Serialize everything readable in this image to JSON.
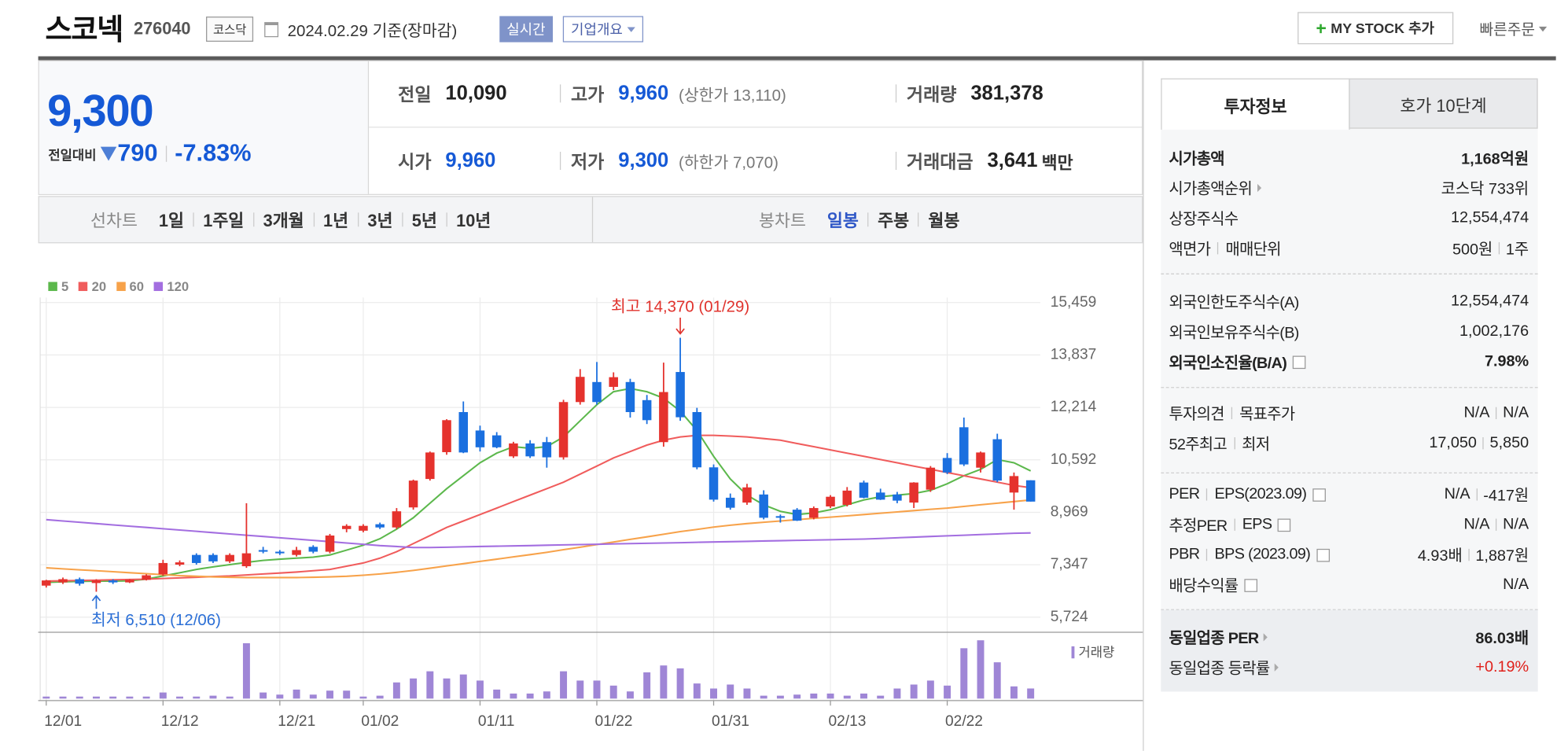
{
  "header": {
    "name": "스코넥",
    "code": "276040",
    "market": "코스닥",
    "date": "2024.02.29 기준(장마감)",
    "realtime": "실시간",
    "company": "기업개요",
    "my_stock": "MY STOCK 추가",
    "quick_order": "빠른주문"
  },
  "quote": {
    "price": "9,300",
    "change_label": "전일대비",
    "change": "790",
    "change_rate": "-7.83%",
    "fields": [
      {
        "label": "전일",
        "value": "10,090"
      },
      {
        "label": "고가",
        "value": "9,960",
        "color": "#1559d6",
        "sub": "(상한가 13,110)"
      },
      {
        "label": "거래량",
        "value": "381,378"
      },
      {
        "label": "시가",
        "value": "9,960",
        "color": "#1559d6"
      },
      {
        "label": "저가",
        "value": "9,300",
        "color": "#1559d6",
        "sub": "(하한가 7,070)"
      },
      {
        "label": "거래대금",
        "value": "3,641",
        "unit": "백만"
      }
    ]
  },
  "tabs": {
    "line_chart": "선차트",
    "line_periods": [
      "1일",
      "1주일",
      "3개월",
      "1년",
      "3년",
      "5년",
      "10년"
    ],
    "candle_chart": "봉차트",
    "candle_periods": [
      "일봉",
      "주봉",
      "월봉"
    ]
  },
  "chart_data": {
    "type": "candlestick",
    "categories": [
      "12/01",
      null,
      null,
      null,
      null,
      null,
      null,
      "12/12",
      null,
      null,
      null,
      null,
      null,
      null,
      "12/21",
      null,
      null,
      null,
      null,
      "01/02",
      null,
      null,
      null,
      null,
      null,
      null,
      "01/11",
      null,
      null,
      null,
      null,
      null,
      null,
      "01/22",
      null,
      null,
      null,
      null,
      null,
      null,
      "01/31",
      null,
      null,
      null,
      null,
      null,
      null,
      "02/13",
      null,
      null,
      null,
      null,
      null,
      null,
      "02/22",
      null,
      null,
      null,
      null,
      null
    ],
    "open": [
      6700,
      6800,
      6900,
      6780,
      6860,
      6800,
      6880,
      7050,
      7350,
      7650,
      7650,
      7450,
      7300,
      7800,
      7750,
      7650,
      7900,
      7750,
      8450,
      8400,
      8600,
      8500,
      9120,
      10000,
      10830,
      12070,
      11500,
      11350,
      10700,
      11100,
      11140,
      10670,
      12380,
      13000,
      12850,
      13000,
      12440,
      11140,
      13310,
      12070,
      10360,
      9420,
      9270,
      9520,
      8850,
      9050,
      8800,
      9150,
      9200,
      9890,
      9580,
      9520,
      9270,
      9670,
      10650,
      11600,
      10350,
      11230,
      9580,
      9960
    ],
    "high": [
      6880,
      6950,
      6950,
      6900,
      6900,
      6900,
      7050,
      7500,
      7480,
      7700,
      7700,
      7700,
      9250,
      7900,
      7800,
      7900,
      7950,
      8300,
      8600,
      8600,
      8650,
      9100,
      9980,
      10850,
      11850,
      12400,
      11650,
      11450,
      11150,
      11200,
      11300,
      12450,
      13400,
      13620,
      13300,
      13100,
      12600,
      13600,
      14370,
      12200,
      10450,
      9550,
      9850,
      9650,
      8900,
      9100,
      9150,
      9500,
      9750,
      9950,
      9700,
      9600,
      9900,
      10400,
      10800,
      11900,
      10850,
      11400,
      10200,
      9960
    ],
    "low": [
      6640,
      6750,
      6700,
      6510,
      6750,
      6780,
      6860,
      7000,
      7300,
      7350,
      7400,
      7400,
      7250,
      7700,
      7650,
      7600,
      7700,
      7700,
      8350,
      8350,
      8450,
      8450,
      9050,
      9950,
      10750,
      10800,
      10850,
      10950,
      10650,
      10650,
      10350,
      10600,
      12300,
      12300,
      12750,
      11900,
      11700,
      11000,
      11800,
      10300,
      9300,
      9050,
      9200,
      8750,
      8650,
      8700,
      8750,
      9100,
      9150,
      9400,
      9350,
      9250,
      9100,
      9600,
      10150,
      10400,
      10200,
      9900,
      9050,
      9300
    ],
    "close": [
      6860,
      6900,
      6760,
      6860,
      6800,
      6880,
      7020,
      7400,
      7420,
      7400,
      7450,
      7650,
      7700,
      7750,
      7700,
      7800,
      7750,
      8250,
      8550,
      8550,
      8500,
      9000,
      9950,
      10820,
      11820,
      10820,
      10980,
      10980,
      11100,
      10700,
      10670,
      12380,
      13160,
      12380,
      13150,
      12070,
      11820,
      12690,
      11910,
      10360,
      9360,
      9110,
      9740,
      8800,
      8800,
      8710,
      9100,
      9450,
      9640,
      9420,
      9360,
      9330,
      9890,
      10350,
      10200,
      10450,
      10820,
      9950,
      10090,
      9300
    ],
    "up_color": "#e5322d",
    "down_color": "#1a6fdf",
    "moving_averages": [
      {
        "name": "5",
        "color": "#5cb84c",
        "values": [
          6800,
          6820,
          6830,
          6840,
          6840,
          6850,
          6900,
          7000,
          7100,
          7200,
          7280,
          7350,
          7420,
          7480,
          7520,
          7550,
          7580,
          7650,
          7800,
          7950,
          8150,
          8450,
          8800,
          9250,
          9700,
          10100,
          10500,
          10800,
          11000,
          10950,
          11000,
          11300,
          11800,
          12300,
          12700,
          12800,
          12700,
          12500,
          12100,
          11500,
          10700,
          10000,
          9500,
          9200,
          9000,
          8900,
          8950,
          9050,
          9200,
          9350,
          9450,
          9500,
          9550,
          9650,
          9850,
          10100,
          10300,
          10600,
          10500,
          10250
        ]
      },
      {
        "name": "20",
        "color": "#f05c5c",
        "values": [
          6840,
          6850,
          6860,
          6870,
          6880,
          6890,
          6900,
          6920,
          6940,
          6960,
          6980,
          7000,
          7030,
          7060,
          7090,
          7120,
          7160,
          7200,
          7300,
          7400,
          7550,
          7750,
          8000,
          8250,
          8500,
          8700,
          8900,
          9100,
          9300,
          9500,
          9700,
          9900,
          10150,
          10400,
          10650,
          10850,
          11050,
          11200,
          11300,
          11350,
          11350,
          11330,
          11300,
          11250,
          11200,
          11100,
          11000,
          10900,
          10800,
          10700,
          10600,
          10500,
          10400,
          10300,
          10200,
          10100,
          10000,
          9900,
          9800,
          9730
        ]
      },
      {
        "name": "60",
        "color": "#f7a24a",
        "values": [
          7250,
          7220,
          7190,
          7160,
          7130,
          7100,
          7070,
          7040,
          7010,
          6990,
          6970,
          6960,
          6950,
          6950,
          6950,
          6950,
          6960,
          6970,
          6990,
          7020,
          7060,
          7110,
          7170,
          7240,
          7310,
          7380,
          7450,
          7520,
          7590,
          7660,
          7730,
          7810,
          7890,
          7970,
          8050,
          8130,
          8210,
          8290,
          8370,
          8440,
          8510,
          8570,
          8620,
          8660,
          8700,
          8740,
          8780,
          8820,
          8860,
          8900,
          8940,
          8980,
          9020,
          9060,
          9100,
          9150,
          9200,
          9250,
          9300,
          9350
        ]
      },
      {
        "name": "120",
        "color": "#a36ee0",
        "values": [
          8740,
          8700,
          8660,
          8620,
          8580,
          8540,
          8500,
          8460,
          8420,
          8380,
          8340,
          8300,
          8260,
          8220,
          8180,
          8140,
          8100,
          8060,
          8020,
          7980,
          7940,
          7910,
          7880,
          7880,
          7890,
          7900,
          7910,
          7920,
          7930,
          7940,
          7950,
          7960,
          7970,
          7980,
          7990,
          8000,
          8010,
          8020,
          8030,
          8040,
          8050,
          8060,
          8070,
          8080,
          8090,
          8100,
          8110,
          8120,
          8130,
          8140,
          8160,
          8180,
          8200,
          8220,
          8240,
          8260,
          8280,
          8300,
          8320,
          8330
        ]
      }
    ],
    "volume": {
      "name": "거래량",
      "color": "#9f86d6",
      "values": [
        76000,
        76000,
        76000,
        76000,
        76000,
        76000,
        76000,
        230000,
        76000,
        76000,
        110000,
        76000,
        2090000,
        230000,
        150000,
        340000,
        150000,
        300000,
        300000,
        76000,
        110000,
        610000,
        760000,
        1030000,
        760000,
        910000,
        680000,
        340000,
        190000,
        190000,
        270000,
        1030000,
        680000,
        680000,
        490000,
        270000,
        990000,
        1250000,
        1140000,
        570000,
        380000,
        530000,
        380000,
        110000,
        110000,
        150000,
        190000,
        190000,
        110000,
        190000,
        110000,
        380000,
        530000,
        680000,
        490000,
        1900000,
        2200000,
        1370000,
        460000,
        381378
      ]
    },
    "ylim": [
      5724,
      15459
    ],
    "yticks": [
      {
        "value": 5724,
        "label": "5,724"
      },
      {
        "value": 7347,
        "label": "7,347"
      },
      {
        "value": 8969,
        "label": "8,969"
      },
      {
        "value": 10592,
        "label": "10,592"
      },
      {
        "value": 12214,
        "label": "12,214"
      },
      {
        "value": 13837,
        "label": "13,837"
      },
      {
        "value": 15459,
        "label": "15,459"
      }
    ],
    "grid": true,
    "annotations": {
      "high": "최고 14,370 (01/29)",
      "low": "최저 6,510 (12/06)"
    }
  },
  "side": {
    "tabs": [
      "투자정보",
      "호가 10단계"
    ],
    "groups": [
      [
        {
          "labels": [
            "시가총액"
          ],
          "values": [
            "1,168억원"
          ],
          "bold": true
        },
        {
          "labels": [
            "시가총액순위"
          ],
          "values": [
            "코스닥 733위"
          ],
          "link": true
        },
        {
          "labels": [
            "상장주식수"
          ],
          "values": [
            "12,554,474"
          ]
        },
        {
          "labels": [
            "액면가",
            "매매단위"
          ],
          "values": [
            "500원",
            "1주"
          ]
        }
      ],
      [
        {
          "labels": [
            "외국인한도주식수(A)"
          ],
          "values": [
            "12,554,474"
          ]
        },
        {
          "labels": [
            "외국인보유주식수(B)"
          ],
          "values": [
            "1,002,176"
          ]
        },
        {
          "labels": [
            "외국인소진율(B/A)"
          ],
          "values": [
            "7.98%"
          ],
          "bold": true,
          "help": true
        }
      ],
      [
        {
          "labels": [
            "투자의견",
            "목표주가"
          ],
          "values": [
            "N/A",
            "N/A"
          ]
        },
        {
          "labels": [
            "52주최고",
            "최저"
          ],
          "values": [
            "17,050",
            "5,850"
          ]
        }
      ],
      [
        {
          "labels": [
            "PER",
            "EPS(2023.09)"
          ],
          "values": [
            "N/A",
            "-417원"
          ],
          "help": true
        },
        {
          "labels": [
            "추정PER",
            "EPS"
          ],
          "values": [
            "N/A",
            "N/A"
          ],
          "help": true
        },
        {
          "labels": [
            "PBR",
            "BPS (2023.09)"
          ],
          "values": [
            "4.93배",
            "1,887원"
          ],
          "help": true
        },
        {
          "labels": [
            "배당수익률"
          ],
          "values": [
            "N/A"
          ],
          "help": true
        }
      ],
      [
        {
          "labels": [
            "동일업종 PER"
          ],
          "values": [
            "86.03배"
          ],
          "bold": true,
          "link": true
        },
        {
          "labels": [
            "동일업종 등락률"
          ],
          "values": [
            "+0.19%"
          ],
          "link": true,
          "color": "#e0201a"
        }
      ]
    ]
  }
}
